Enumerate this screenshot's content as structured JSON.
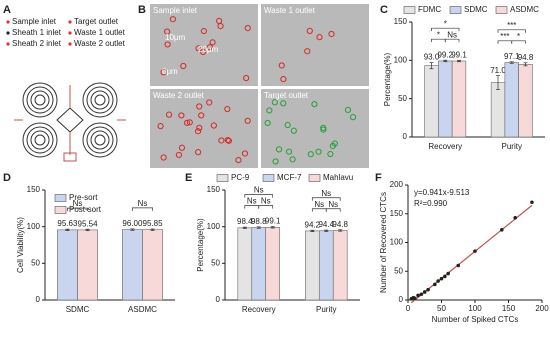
{
  "panel_a": {
    "panel": "A",
    "legend": [
      "Sample inlet",
      "Target outlet",
      "Sheath 1 inlet",
      "Waste 1 outlet",
      "Sheath 2 inlet",
      "Waste 2 outlet"
    ]
  },
  "panel_b": {
    "panel": "B",
    "images": [
      "Sample inlet",
      "Waste 1 outlet",
      "Waste 2 outlet",
      "Target outlet"
    ],
    "size_labels": [
      "10μm",
      "20μm",
      "6μm"
    ]
  },
  "chart_data": [
    {
      "type": "bar",
      "panel": "C",
      "ylabel": "Percentage(%)",
      "categories": [
        "Recovery",
        "Purity"
      ],
      "series": [
        {
          "name": "FDMC",
          "color": "#e4e4e4",
          "values": [
            93.0,
            71.0
          ],
          "value_labels": [
            "93.0",
            "71.0"
          ],
          "errors": [
            4,
            9
          ]
        },
        {
          "name": "SDMC",
          "color": "#c9d5ef",
          "values": [
            99.2,
            97.1
          ],
          "value_labels": [
            "99.2",
            "97.1"
          ],
          "errors": [
            1,
            1
          ]
        },
        {
          "name": "ASDMC",
          "color": "#f7d9d9",
          "values": [
            99.1,
            94.8
          ],
          "value_labels": [
            "99.1",
            "94.8"
          ],
          "errors": [
            1,
            2
          ]
        }
      ],
      "significance": [
        [
          "*",
          "*",
          "Ns"
        ],
        [
          "***",
          "***",
          "*"
        ]
      ],
      "ylim": [
        0,
        150
      ],
      "yticks": [
        0,
        50,
        100,
        150
      ]
    },
    {
      "type": "bar",
      "panel": "D",
      "ylabel": "Cell Viability(%)",
      "categories": [
        "SDMC",
        "ASDMC"
      ],
      "series": [
        {
          "name": "Pre-sort",
          "color": "#c9d5ef",
          "values": [
            95.63,
            96.0
          ],
          "value_labels": [
            "95.63",
            "96.00"
          ],
          "errors": [
            1,
            1
          ]
        },
        {
          "name": "Post-sort",
          "color": "#f7d9d9",
          "values": [
            95.54,
            95.85
          ],
          "value_labels": [
            "95.54",
            "95.85"
          ],
          "errors": [
            1,
            1
          ]
        }
      ],
      "significance": [
        [
          "Ns"
        ],
        [
          "Ns"
        ]
      ],
      "ylim": [
        0,
        150
      ],
      "yticks": [
        0,
        50,
        100,
        150
      ]
    },
    {
      "type": "bar",
      "panel": "E",
      "ylabel": "Percentage(%)",
      "categories": [
        "Recovery",
        "Purity"
      ],
      "series": [
        {
          "name": "PC-9",
          "color": "#e4e4e4",
          "values": [
            98.4,
            94.2
          ],
          "value_labels": [
            "98.4",
            "94.2"
          ],
          "errors": [
            1,
            1
          ]
        },
        {
          "name": "MCF-7",
          "color": "#c9d5ef",
          "values": [
            98.8,
            94.4
          ],
          "value_labels": [
            "98.8",
            "94.4"
          ],
          "errors": [
            1,
            1
          ]
        },
        {
          "name": "Mahlavu",
          "color": "#f7d9d9",
          "values": [
            99.1,
            94.8
          ],
          "value_labels": [
            "99.1",
            "94.8"
          ],
          "errors": [
            1,
            1
          ]
        }
      ],
      "significance": [
        [
          "Ns",
          "Ns",
          "Ns"
        ],
        [
          "Ns",
          "Ns",
          "Ns"
        ]
      ],
      "ylim": [
        0,
        150
      ],
      "yticks": [
        0,
        50,
        100,
        150
      ]
    },
    {
      "type": "scatter",
      "panel": "F",
      "xlabel": "Number of Spiked CTCs",
      "ylabel": "Number of Recovered CTCs",
      "x": [
        5,
        8,
        10,
        15,
        20,
        25,
        30,
        40,
        45,
        50,
        55,
        60,
        75,
        100,
        140,
        160,
        185
      ],
      "values": [
        2,
        4,
        3,
        8,
        10,
        14,
        18,
        27,
        33,
        37,
        41,
        46,
        60,
        85,
        122,
        143,
        170
      ],
      "color": "#222222",
      "fit": {
        "slope": 0.941,
        "intercept": -9.513,
        "label": "y=0.941x-9.513",
        "color": "#c0504d"
      },
      "annotations": [
        "R²=0.990"
      ],
      "xlim": [
        0,
        200
      ],
      "xticks": [
        0,
        50,
        100,
        150,
        200
      ],
      "ylim": [
        0,
        200
      ],
      "yticks": [
        0,
        50,
        100,
        150,
        200
      ]
    }
  ]
}
